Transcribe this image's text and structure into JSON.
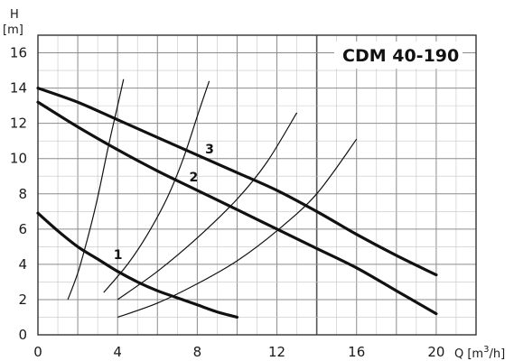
{
  "chart_data": {
    "type": "line",
    "title": "CDM 40-190",
    "y_axis": {
      "letter": "H",
      "unit": "[m]",
      "range": [
        0,
        17
      ],
      "ticks": [
        0,
        2,
        4,
        6,
        8,
        10,
        12,
        14,
        16
      ]
    },
    "x_axis": {
      "prefix": "Q [m",
      "sup": "3",
      "suffix": "/h]",
      "range": [
        0,
        22
      ],
      "ticks": [
        0,
        4,
        8,
        12,
        16,
        20
      ]
    },
    "grid": "on",
    "series": [
      {
        "name": "1",
        "label_at": [
          3.8,
          4.3
        ],
        "points": [
          [
            0,
            6.9
          ],
          [
            1.0,
            5.9
          ],
          [
            2.0,
            5.0
          ],
          [
            3.0,
            4.3
          ],
          [
            4.0,
            3.6
          ],
          [
            5.0,
            3.0
          ],
          [
            6.0,
            2.5
          ],
          [
            7.0,
            2.1
          ],
          [
            8.0,
            1.7
          ],
          [
            9.0,
            1.3
          ],
          [
            10.0,
            1.0
          ]
        ]
      },
      {
        "name": "2",
        "label_at": [
          7.6,
          8.7
        ],
        "points": [
          [
            0,
            13.2
          ],
          [
            2,
            11.8
          ],
          [
            4,
            10.5
          ],
          [
            6,
            9.3
          ],
          [
            8,
            8.2
          ],
          [
            10,
            7.1
          ],
          [
            12,
            6.0
          ],
          [
            14,
            4.9
          ],
          [
            16,
            3.8
          ],
          [
            18,
            2.5
          ],
          [
            20,
            1.2
          ]
        ]
      },
      {
        "name": "3",
        "label_at": [
          8.4,
          10.3
        ],
        "points": [
          [
            0,
            14.0
          ],
          [
            2,
            13.2
          ],
          [
            4,
            12.2
          ],
          [
            6,
            11.2
          ],
          [
            8,
            10.2
          ],
          [
            10,
            9.2
          ],
          [
            12,
            8.2
          ],
          [
            14,
            7.0
          ],
          [
            16,
            5.7
          ],
          [
            18,
            4.5
          ],
          [
            20,
            3.4
          ]
        ]
      }
    ],
    "system_curves": [
      [
        [
          1.5,
          2.0
        ],
        [
          2.0,
          3.5
        ],
        [
          2.5,
          5.5
        ],
        [
          3.0,
          7.8
        ],
        [
          3.5,
          10.5
        ],
        [
          4.0,
          13.0
        ],
        [
          4.3,
          14.5
        ]
      ],
      [
        [
          3.3,
          2.4
        ],
        [
          4.5,
          4.0
        ],
        [
          5.5,
          5.7
        ],
        [
          6.5,
          7.8
        ],
        [
          7.3,
          10.0
        ],
        [
          8.0,
          12.4
        ],
        [
          8.6,
          14.4
        ]
      ],
      [
        [
          4.0,
          2.0
        ],
        [
          6.0,
          3.6
        ],
        [
          8.0,
          5.5
        ],
        [
          10.0,
          7.7
        ],
        [
          11.5,
          9.8
        ],
        [
          13.0,
          12.6
        ]
      ],
      [
        [
          4.0,
          1.0
        ],
        [
          6.0,
          1.8
        ],
        [
          8.0,
          2.9
        ],
        [
          10.0,
          4.2
        ],
        [
          12.0,
          5.9
        ],
        [
          14.0,
          8.0
        ],
        [
          16.0,
          11.1
        ]
      ]
    ]
  }
}
